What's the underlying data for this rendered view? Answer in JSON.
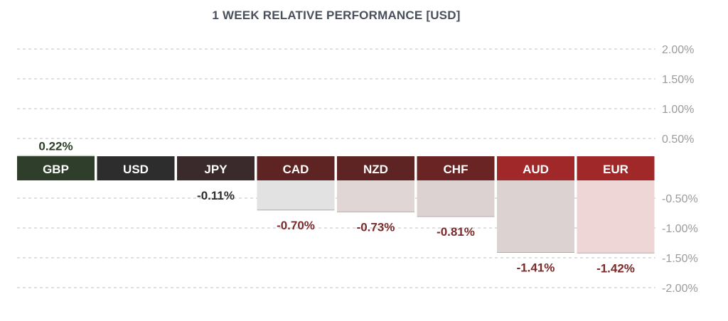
{
  "chart_data": {
    "type": "bar",
    "title": "1 WEEK RELATIVE PERFORMANCE  [USD]",
    "categories": [
      "GBP",
      "USD",
      "JPY",
      "CAD",
      "NZD",
      "CHF",
      "AUD",
      "EUR"
    ],
    "values": [
      0.22,
      0.0,
      -0.11,
      -0.7,
      -0.73,
      -0.81,
      -1.41,
      -1.42
    ],
    "value_labels": [
      "0.22%",
      "",
      "-0.11%",
      "-0.70%",
      "-0.73%",
      "-0.81%",
      "-1.41%",
      "-1.42%"
    ],
    "ylim": [
      -2.0,
      2.0
    ],
    "yticks": [
      2.0,
      1.5,
      1.0,
      0.5,
      -0.5,
      -1.0,
      -1.5,
      -2.0
    ],
    "ytick_labels": [
      "2.00%",
      "1.50%",
      "1.00%",
      "0.50%",
      "-0.50%",
      "-1.00%",
      "-1.50%",
      "-2.00%"
    ],
    "grid": true,
    "colors": {
      "label_bg": [
        "#2f3e2b",
        "#2d2d2d",
        "#3a2a2b",
        "#5e2323",
        "#5e2323",
        "#6b2424",
        "#a02828",
        "#a02828"
      ],
      "positive_fill": "#d2d4d1",
      "negative_fill": [
        "#e2e2e2",
        "#e0d6d6",
        "#ddd2d2",
        "#dcd2d2",
        "#efd6d6"
      ],
      "positive_text": "#2f3e2b",
      "negative_text": "#7a2a2a",
      "jpy_text": "#2d2d2d",
      "grid": "#bfbfbf",
      "tick_text": "#9a9a9a"
    }
  }
}
